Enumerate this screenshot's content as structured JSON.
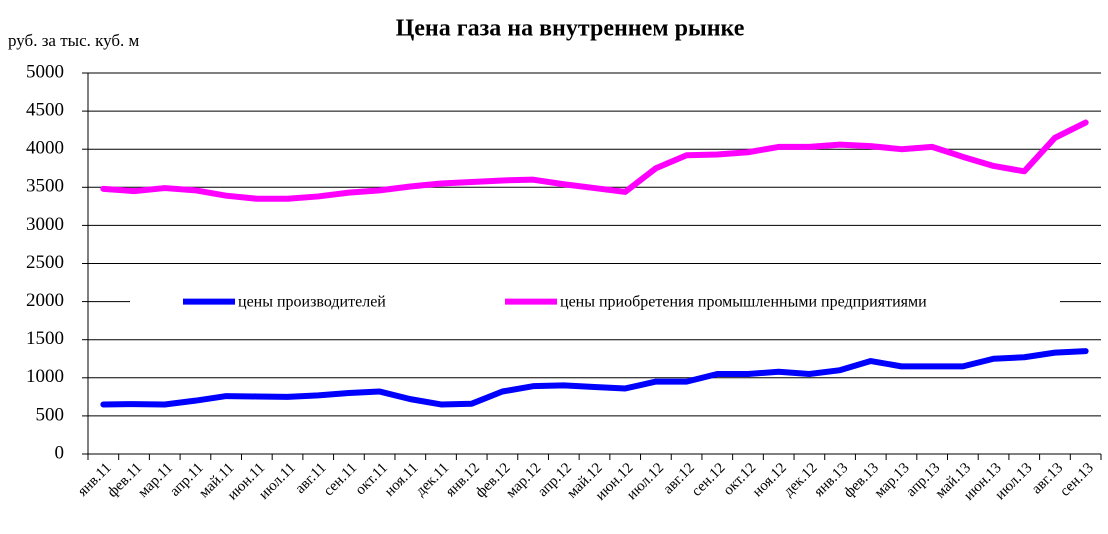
{
  "chart_data": {
    "type": "line",
    "title": "Цена газа на внутреннем рынке",
    "y_label": "руб. за тыс. куб. м",
    "categories": [
      "янв.11",
      "фев.11",
      "мар.11",
      "апр.11",
      "май.11",
      "июн.11",
      "июл.11",
      "авг.11",
      "сен.11",
      "окт.11",
      "ноя.11",
      "дек.11",
      "янв.12",
      "фев.12",
      "мар.12",
      "апр.12",
      "май.12",
      "июн.12",
      "июл.12",
      "авг.12",
      "сен.12",
      "окт.12",
      "ноя.12",
      "дек.12",
      "янв.13",
      "фев.13",
      "мар.13",
      "апр.13",
      "май.13",
      "июн.13",
      "июл.13",
      "авг.13",
      "сен.13"
    ],
    "series": [
      {
        "name": "цены производителей",
        "color": "#0000ff",
        "values": [
          650,
          655,
          650,
          700,
          760,
          755,
          750,
          770,
          800,
          820,
          720,
          650,
          660,
          820,
          890,
          900,
          880,
          860,
          950,
          950,
          1050,
          1050,
          1080,
          1050,
          1100,
          1220,
          1150,
          1150,
          1150,
          1250,
          1270,
          1330,
          1350
        ]
      },
      {
        "name": "цены приобретения промышленными предприятиями",
        "color": "#ff00ff",
        "values": [
          3480,
          3450,
          3490,
          3460,
          3390,
          3350,
          3350,
          3380,
          3430,
          3460,
          3510,
          3550,
          3570,
          3590,
          3600,
          3540,
          3490,
          3440,
          3750,
          3920,
          3930,
          3960,
          4030,
          4030,
          4060,
          4040,
          4000,
          4030,
          3900,
          3780,
          3710,
          4150,
          4350
        ]
      }
    ],
    "ylim": [
      0,
      5000
    ],
    "yticks": [
      0,
      500,
      1000,
      1500,
      2000,
      2500,
      3000,
      3500,
      4000,
      4500,
      5000
    ],
    "grid": true
  }
}
